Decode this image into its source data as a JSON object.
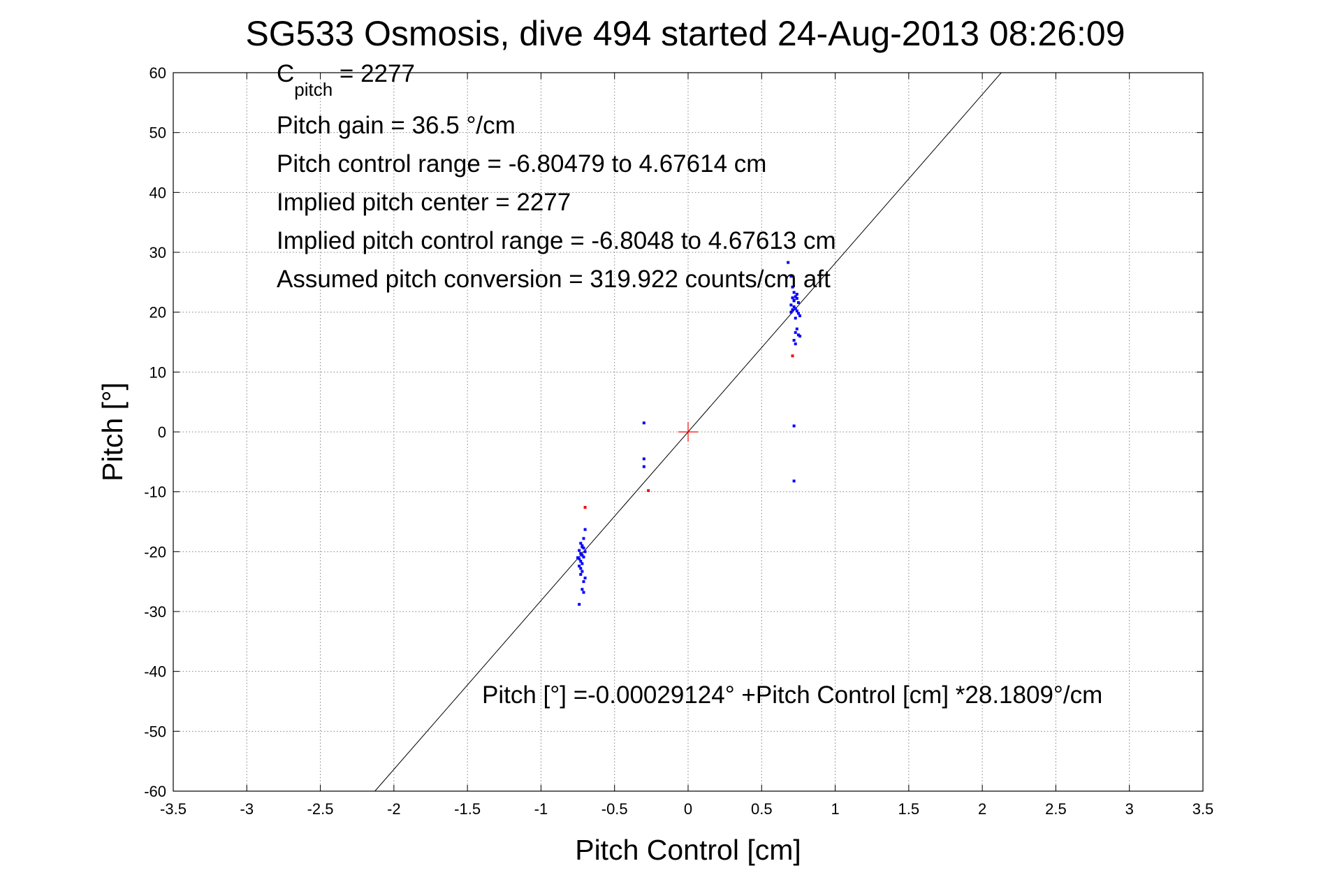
{
  "chart_data": {
    "type": "scatter",
    "title": "SG533 Osmosis, dive 494 started 24-Aug-2013 08:26:09",
    "xlabel": "Pitch Control [cm]",
    "ylabel": "Pitch [°]",
    "xlim": [
      -3.5,
      3.5
    ],
    "ylim": [
      -60,
      60
    ],
    "x_ticks": [
      -3.5,
      -3,
      -2.5,
      -2,
      -1.5,
      -1,
      -0.5,
      0,
      0.5,
      1,
      1.5,
      2,
      2.5,
      3,
      3.5
    ],
    "x_tick_labels": [
      "-3.5",
      "-3",
      "-2.5",
      "-2",
      "-1.5",
      "-1",
      "-0.5",
      "0",
      "0.5",
      "1",
      "1.5",
      "2",
      "2.5",
      "3",
      "3.5"
    ],
    "y_ticks": [
      -60,
      -50,
      -40,
      -30,
      -20,
      -10,
      0,
      10,
      20,
      30,
      40,
      50,
      60
    ],
    "y_tick_labels": [
      "-60",
      "-50",
      "-40",
      "-30",
      "-20",
      "-10",
      "0",
      "10",
      "20",
      "30",
      "40",
      "50",
      "60"
    ],
    "grid": true,
    "annotations": {
      "c_pitch_main": "C",
      "c_pitch_sub": "pitch",
      "c_pitch_rest": " = 2277",
      "lines": [
        "Pitch gain = 36.5 °/cm",
        "Pitch control range = -6.80479 to 4.67614 cm",
        "Implied pitch center = 2277",
        "Implied pitch control range = -6.8048 to 4.67613 cm",
        "Assumed pitch conversion = 319.922 counts/cm aft"
      ],
      "fit_equation": "Pitch [°] =-0.00029124° +Pitch Control [cm] *28.1809°/cm"
    },
    "fit_line": {
      "intercept": -0.00029124,
      "slope": 28.1809,
      "color": "#000000"
    },
    "center_marker": {
      "x": 0,
      "y": 0,
      "color": "#ff0000"
    },
    "series": [
      {
        "color": "#0000ff",
        "points": [
          [
            0.68,
            28.3
          ],
          [
            0.7,
            26.0
          ],
          [
            0.71,
            24.2
          ],
          [
            0.72,
            23.3
          ],
          [
            0.74,
            23.0
          ],
          [
            0.73,
            22.6
          ],
          [
            0.71,
            22.4
          ],
          [
            0.72,
            22.0
          ],
          [
            0.74,
            22.3
          ],
          [
            0.75,
            21.6
          ],
          [
            0.7,
            21.2
          ],
          [
            0.72,
            20.9
          ],
          [
            0.73,
            20.6
          ],
          [
            0.71,
            20.4
          ],
          [
            0.74,
            20.2
          ],
          [
            0.75,
            19.8
          ],
          [
            0.76,
            19.4
          ],
          [
            0.72,
            21.9
          ],
          [
            0.7,
            20.0
          ],
          [
            0.73,
            19.0
          ],
          [
            0.74,
            17.2
          ],
          [
            0.73,
            16.6
          ],
          [
            0.75,
            16.2
          ],
          [
            0.76,
            16.0
          ],
          [
            0.72,
            15.3
          ],
          [
            0.73,
            14.7
          ],
          [
            0.72,
            1.0
          ],
          [
            0.72,
            -8.2
          ],
          [
            -0.3,
            1.5
          ],
          [
            -0.3,
            -4.5
          ],
          [
            -0.3,
            -5.8
          ],
          [
            -0.7,
            -16.3
          ],
          [
            -0.71,
            -17.8
          ],
          [
            -0.73,
            -18.6
          ],
          [
            -0.72,
            -19.0
          ],
          [
            -0.71,
            -19.4
          ],
          [
            -0.74,
            -19.8
          ],
          [
            -0.7,
            -20.0
          ],
          [
            -0.73,
            -20.3
          ],
          [
            -0.72,
            -20.6
          ],
          [
            -0.71,
            -20.9
          ],
          [
            -0.74,
            -21.2
          ],
          [
            -0.73,
            -21.6
          ],
          [
            -0.72,
            -22.0
          ],
          [
            -0.74,
            -22.4
          ],
          [
            -0.73,
            -22.8
          ],
          [
            -0.72,
            -23.3
          ],
          [
            -0.73,
            -23.8
          ],
          [
            -0.7,
            -24.4
          ],
          [
            -0.71,
            -25.0
          ],
          [
            -0.72,
            -26.3
          ],
          [
            -0.71,
            -26.8
          ],
          [
            -0.74,
            -28.8
          ],
          [
            -0.72,
            -19.2
          ],
          [
            -0.75,
            -21.0
          ]
        ]
      },
      {
        "color": "#ff0000",
        "points": [
          [
            0.71,
            12.7
          ],
          [
            -0.7,
            -12.6
          ],
          [
            -0.27,
            -9.8
          ]
        ]
      }
    ]
  }
}
